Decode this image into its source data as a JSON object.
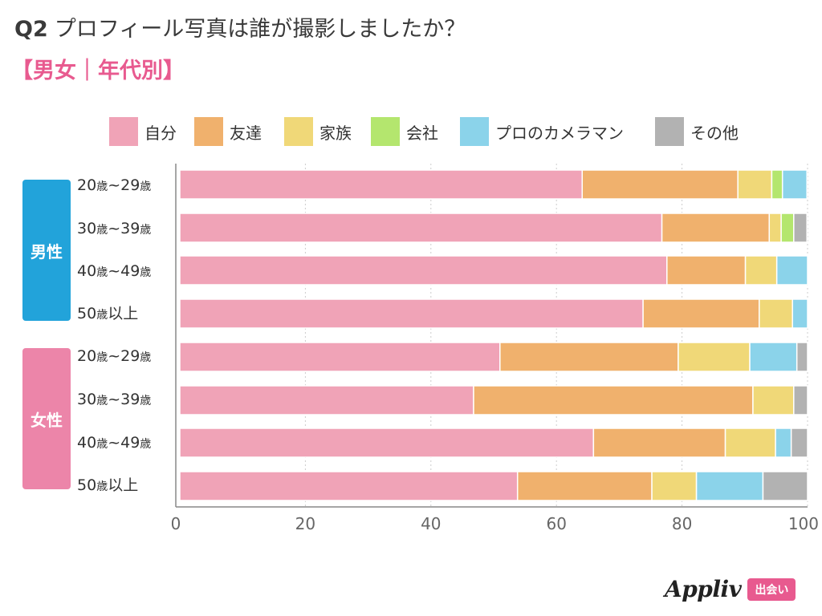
{
  "header": {
    "q_label": "Q2",
    "title": "プロフィール写真は誰が撮影しましたか？",
    "subtitle": "【男女｜年代別】"
  },
  "chart_data": {
    "type": "bar",
    "orientation": "horizontal",
    "stacked": true,
    "title": "Q2 プロフィール写真は誰が撮影しましたか？",
    "subtitle": "【男女｜年代別】",
    "xlim": [
      0,
      100
    ],
    "xticks": [
      0,
      20,
      40,
      60,
      80,
      100
    ],
    "xtick_labels": [
      "0",
      "20",
      "40",
      "60",
      "80",
      "100"
    ],
    "legend_position": "top",
    "groups": [
      {
        "name": "男性",
        "color": "#22a3da",
        "rows": [
          0,
          1,
          2,
          3
        ]
      },
      {
        "name": "女性",
        "color": "#ec85a9",
        "rows": [
          4,
          5,
          6,
          7
        ]
      }
    ],
    "categories": [
      {
        "main": "20",
        "unit": "歳",
        "sep": "~",
        "main2": "29",
        "unit2": "歳"
      },
      {
        "main": "30",
        "unit": "歳",
        "sep": "~",
        "main2": "39",
        "unit2": "歳"
      },
      {
        "main": "40",
        "unit": "歳",
        "sep": "~",
        "main2": "49",
        "unit2": "歳"
      },
      {
        "main": "50",
        "unit": "歳",
        "sep": "",
        "main2": "以上",
        "unit2": ""
      },
      {
        "main": "20",
        "unit": "歳",
        "sep": "~",
        "main2": "29",
        "unit2": "歳"
      },
      {
        "main": "30",
        "unit": "歳",
        "sep": "~",
        "main2": "39",
        "unit2": "歳"
      },
      {
        "main": "40",
        "unit": "歳",
        "sep": "~",
        "main2": "49",
        "unit2": "歳"
      },
      {
        "main": "50",
        "unit": "歳",
        "sep": "",
        "main2": "以上",
        "unit2": ""
      }
    ],
    "series": [
      {
        "name": "自分",
        "color": "#f0a3b7",
        "values": [
          64.1,
          76.8,
          77.6,
          73.8,
          51.0,
          46.8,
          65.9,
          53.8
        ]
      },
      {
        "name": "友達",
        "color": "#f0b16d",
        "values": [
          24.8,
          17.1,
          12.5,
          18.5,
          28.4,
          44.5,
          21.0,
          21.4
        ]
      },
      {
        "name": "家族",
        "color": "#f0d878",
        "values": [
          5.4,
          1.9,
          5.0,
          5.3,
          11.4,
          6.5,
          8.0,
          7.1
        ]
      },
      {
        "name": "会社",
        "color": "#b4e66e",
        "values": [
          1.7,
          2.0,
          0.0,
          0.0,
          0.0,
          0.0,
          0.0,
          0.0
        ]
      },
      {
        "name": "プロのカメラマン",
        "color": "#8bd3ea",
        "values": [
          3.9,
          0.0,
          4.9,
          2.4,
          7.5,
          0.0,
          2.5,
          10.6
        ]
      },
      {
        "name": "その他",
        "color": "#b2b2b2",
        "values": [
          0.0,
          2.1,
          0.0,
          0.0,
          1.7,
          2.2,
          2.6,
          7.1
        ]
      }
    ]
  },
  "footer": {
    "logo_text": "Appliv",
    "badge_text": "出会い"
  }
}
